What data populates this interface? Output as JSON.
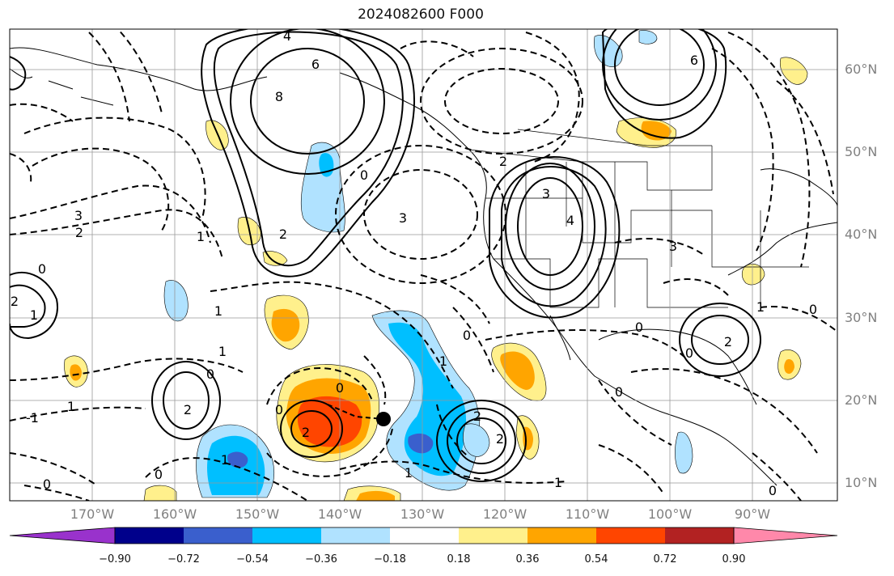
{
  "title": "2024082600 F000",
  "lat_labels": [
    "60°N",
    "50°N",
    "40°N",
    "30°N",
    "20°N",
    "10°N"
  ],
  "lon_labels": [
    "170°W",
    "160°W",
    "150°W",
    "140°W",
    "130°W",
    "120°W",
    "110°W",
    "100°W",
    "90°W"
  ],
  "colorbar": {
    "ticks": [
      "−0.90",
      "−0.72",
      "−0.54",
      "−0.36",
      "−0.18",
      "0.18",
      "0.36",
      "0.54",
      "0.72",
      "0.90"
    ],
    "colors": [
      "#9932cc",
      "#00008b",
      "#3a5fcd",
      "#00bfff",
      "#b0e2ff",
      "#ffffff",
      "#fff08c",
      "#ffa500",
      "#ff4500",
      "#b22222",
      "#ff88aa"
    ]
  },
  "contour_labels": {
    "values": [
      "4",
      "6",
      "8",
      "0",
      "2",
      "3",
      "4",
      "6",
      "2",
      "3",
      "2",
      "1",
      "0",
      "2",
      "1",
      "0",
      "1",
      "0",
      "2",
      "2",
      "1",
      "3",
      "2",
      "1",
      "0",
      "0",
      "1",
      "0",
      "1",
      "3",
      "0",
      "2",
      "1",
      "0",
      "2",
      "-1",
      "0",
      "0",
      "1",
      "0",
      "1",
      "0"
    ]
  },
  "marker": {
    "lon": -134.5,
    "lat": 17.5
  }
}
